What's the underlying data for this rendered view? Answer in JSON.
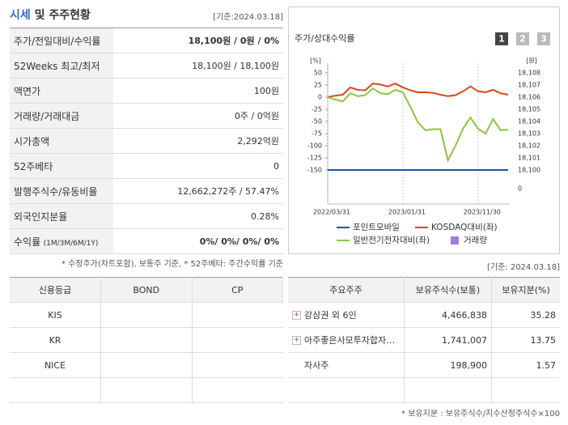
{
  "header": {
    "title_highlight": "시세",
    "title_rest": "및 주주현황",
    "date": "[기준:2024.03.18]"
  },
  "price_table": {
    "rows": [
      {
        "label": "주가/전일대비/수익률",
        "value": "18,100원 / 0원 / 0%"
      },
      {
        "label": "52Weeks 최고/최저",
        "value": "18,100원 / 18,100원"
      },
      {
        "label": "액면가",
        "value": "100원"
      },
      {
        "label": "거래량/거래대금",
        "value": "0주 / 0억원"
      },
      {
        "label": "시가총액",
        "value": "2,292억원"
      },
      {
        "label": "52주베타",
        "value": "0"
      },
      {
        "label": "발행주식수/유동비율",
        "value": "12,662,272주 / 57.47%"
      },
      {
        "label": "외국인지분율",
        "value": "0.28%"
      },
      {
        "label": "수익률",
        "label_note": "(1M/3M/6M/1Y)",
        "value": "0%/ 0%/ 0%/ 0%"
      }
    ]
  },
  "price_note": "* 수정주가(차트포함), 보통주 기준, * 52주베타: 주간수익률 기준",
  "chart_panel": {
    "title": "주가/상대수익률",
    "buttons": [
      "1",
      "2",
      "3"
    ]
  },
  "chart_data": {
    "type": "line",
    "y_unit": "[%]",
    "y2_unit": "[원]",
    "categories": [
      "2022/03/31",
      null,
      null,
      null,
      null,
      null,
      null,
      null,
      null,
      null,
      "2023/01/31",
      null,
      null,
      null,
      null,
      null,
      null,
      null,
      null,
      null,
      "2023/11/30",
      null,
      null,
      null,
      null
    ],
    "ylim": [
      -150,
      50
    ],
    "yticks": [
      50,
      25,
      0,
      -25,
      -50,
      -75,
      -100,
      -125,
      -150
    ],
    "y2lim": [
      18100,
      18108
    ],
    "y2ticks": [
      {
        "value": 18108,
        "label": "18,108"
      },
      {
        "value": 18107,
        "label": "18,107"
      },
      {
        "value": 18106,
        "label": "18,106"
      },
      {
        "value": 18105,
        "label": "18,105"
      },
      {
        "value": 18104,
        "label": "18,104"
      },
      {
        "value": 18103,
        "label": "18,103"
      },
      {
        "value": 18102,
        "label": "18,102"
      },
      {
        "value": 18101,
        "label": "18,101"
      },
      {
        "value": 18100,
        "label": "18,100"
      },
      0
    ],
    "series": [
      {
        "name": "포인트모바일",
        "color": "#2451a6",
        "axis": "y2",
        "values": [
          18100,
          18100,
          18100,
          18100,
          18100,
          18100,
          18100,
          18100,
          18100,
          18100,
          18100,
          18100,
          18100,
          18100,
          18100,
          18100,
          18100,
          18100,
          18100,
          18100,
          18100,
          18100,
          18100,
          18100,
          18100
        ]
      },
      {
        "name": "KOSDAQ대비(좌)",
        "color": "#d9471b",
        "values": [
          0,
          3,
          5,
          20,
          15,
          14,
          28,
          26,
          22,
          28,
          20,
          14,
          10,
          10,
          9,
          5,
          2,
          4,
          12,
          22,
          12,
          10,
          15,
          8,
          5
        ]
      },
      {
        "name": "일반전기전자대비(좌)",
        "color": "#8dc63f",
        "values": [
          0,
          -5,
          -9,
          8,
          2,
          4,
          18,
          8,
          6,
          15,
          10,
          -20,
          -52,
          -68,
          -66,
          -66,
          -130,
          -100,
          -65,
          -42,
          -65,
          -75,
          -45,
          -68,
          -67
        ]
      },
      {
        "name": "거래량",
        "color": "#a07ce0",
        "type": "bar",
        "values": [
          0,
          0,
          0,
          0,
          0,
          0,
          0,
          0,
          0,
          0,
          0,
          0,
          0,
          0,
          0,
          0,
          0,
          0,
          0,
          0,
          0,
          0,
          0,
          0,
          0
        ]
      }
    ]
  },
  "rating_table": {
    "headers": [
      "신용등급",
      "BOND",
      "CP"
    ],
    "agencies": [
      "KIS",
      "KR",
      "NICE"
    ]
  },
  "shareholder_date": "[기준: 2024.03.18]",
  "shareholder_table": {
    "headers": [
      "주요주주",
      "보유주식수(보통)",
      "보유지분(%)"
    ],
    "rows": [
      [
        "강삼권 외 6인",
        "4,466,838",
        "35.28"
      ],
      [
        "아주좋은사모투자합자…",
        "1,741,007",
        "13.75"
      ],
      [
        "자사주",
        "198,900",
        "1.57"
      ]
    ]
  },
  "shareholder_note": "* 보유지분 : 보유주식수/지수산정주식수×100"
}
